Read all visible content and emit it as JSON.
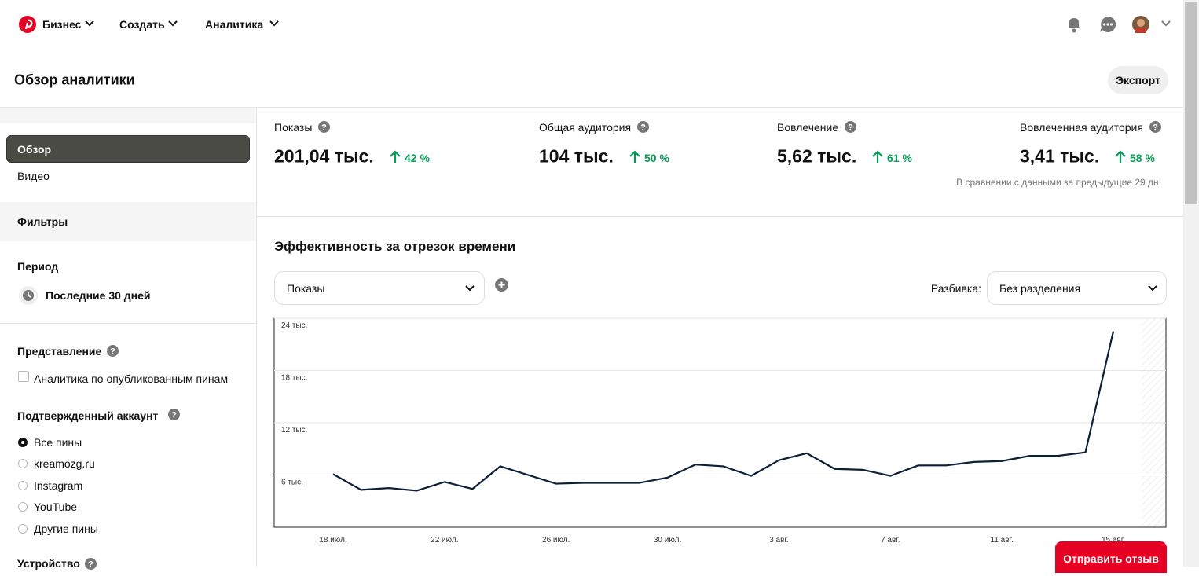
{
  "nav": {
    "brand": "Бизнес",
    "items": [
      "Создать",
      "Аналитика"
    ]
  },
  "header": {
    "title": "Обзор аналитики",
    "export": "Экспорт"
  },
  "sidebar": {
    "tabs": [
      "Обзор",
      "Видео"
    ],
    "filters": "Фильтры",
    "period_label": "Период",
    "period": "Последние 30 дней",
    "view_label": "Представление",
    "view_option": "Аналитика по опубликованным пинам",
    "account_label": "Подтвержденный аккаунт",
    "accounts": [
      "Все пины",
      "kreamozg.ru",
      "Instagram",
      "YouTube",
      "Другие пины"
    ],
    "device_label": "Устройство"
  },
  "metrics": [
    {
      "label": "Показы",
      "value": "201,04 тыс.",
      "change": "42 %"
    },
    {
      "label": "Общая аудитория",
      "value": "104 тыс.",
      "change": "50 %"
    },
    {
      "label": "Вовлечение",
      "value": "5,62 тыс.",
      "change": "61 %"
    },
    {
      "label": "Вовлеченная аудитория",
      "value": "3,41 тыс.",
      "change": "58 %"
    }
  ],
  "comparison_note": "В сравнении с данными за предыдущие 29 дн.",
  "section_title": "Эффективность за отрезок времени",
  "metric_select": "Показы",
  "breakdown_label": "Разбивка:",
  "breakdown_select": "Без разделения",
  "feedback": "Отправить отзыв",
  "chart_data": {
    "type": "line",
    "categories": [
      "18 июл.",
      null,
      null,
      null,
      "22 июл.",
      null,
      null,
      null,
      "26 июл.",
      null,
      null,
      null,
      "30 июл.",
      null,
      null,
      null,
      "3 авг.",
      null,
      null,
      null,
      "7 авг.",
      null,
      null,
      null,
      "11 авг.",
      null,
      null,
      null,
      "15 авг."
    ],
    "values": [
      6100,
      4300,
      4500,
      4200,
      5200,
      4400,
      7000,
      6000,
      5000,
      5100,
      5100,
      5100,
      5700,
      7200,
      7000,
      5900,
      7700,
      8500,
      6700,
      6600,
      5900,
      7100,
      7100,
      7500,
      7600,
      8200,
      8200,
      8600,
      22500
    ],
    "color": "#0b1f3a",
    "ylim": [
      0,
      24000
    ],
    "yticks": [
      {
        "value": 6000,
        "label": "6 тыс."
      },
      {
        "value": 12000,
        "label": "12 тыс."
      },
      {
        "value": 18000,
        "label": "18 тыс."
      },
      {
        "value": 24000,
        "label": "24 тыс."
      }
    ],
    "grid": true
  }
}
